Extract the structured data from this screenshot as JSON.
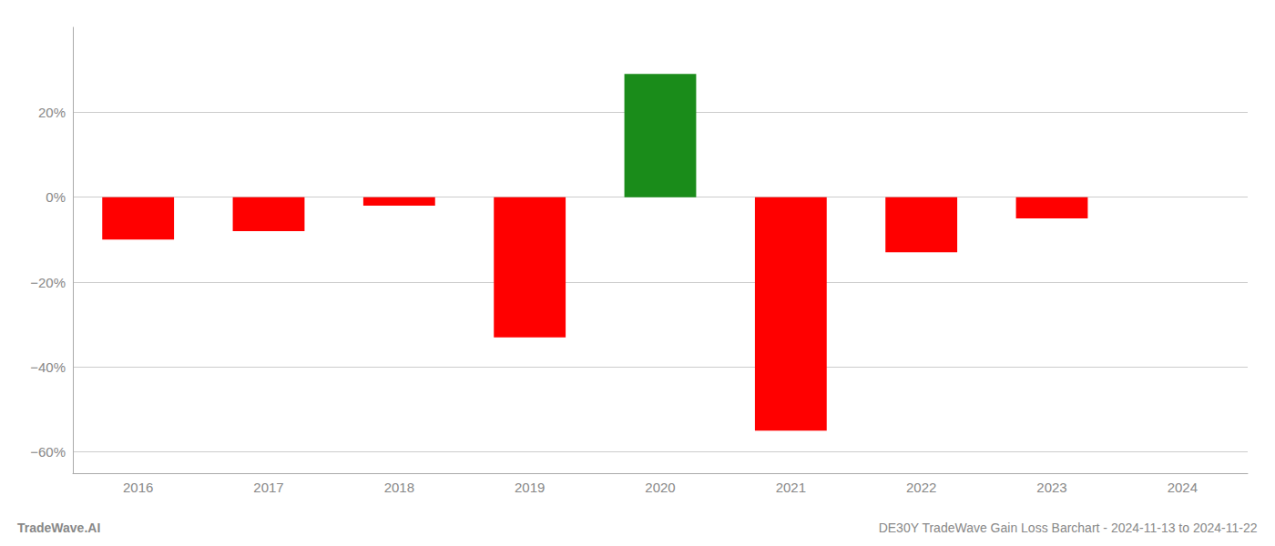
{
  "chart_data": {
    "type": "bar",
    "title": "DE30Y TradeWave Gain Loss Barchart - 2024-11-13 to 2024-11-22",
    "annotations": [
      "TradeWave.AI"
    ],
    "categories": [
      "2016",
      "2017",
      "2018",
      "2019",
      "2020",
      "2021",
      "2022",
      "2023",
      "2024"
    ],
    "values": [
      -0.1,
      -0.08,
      -0.02,
      -0.33,
      0.29,
      -0.55,
      -0.13,
      -0.05,
      0.0
    ],
    "colors": [
      "#ff0000",
      "#ff0000",
      "#ff0000",
      "#ff0000",
      "#1a8c1a",
      "#ff0000",
      "#ff0000",
      "#ff0000",
      "#ff0000"
    ],
    "ylim": [
      -0.65,
      0.4
    ],
    "yticks": [
      {
        "value": -0.6,
        "label": "−60%"
      },
      {
        "value": -0.4,
        "label": "−40%"
      },
      {
        "value": -0.2,
        "label": "−20%"
      },
      {
        "value": 0.0,
        "label": "0%"
      },
      {
        "value": 0.2,
        "label": "20%"
      }
    ],
    "grid": true
  }
}
